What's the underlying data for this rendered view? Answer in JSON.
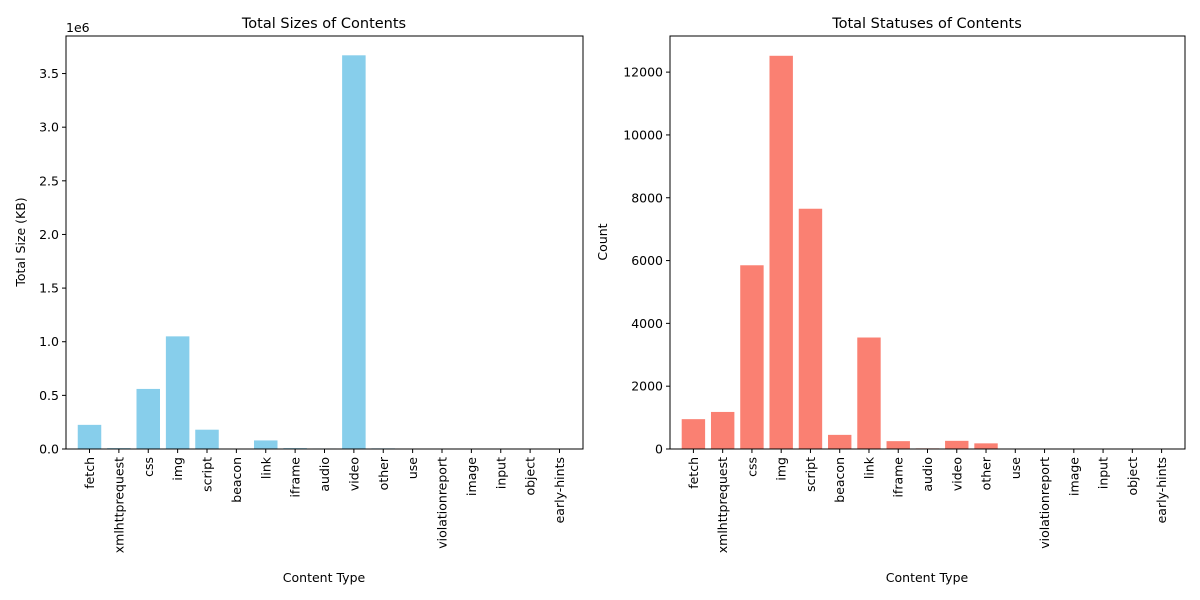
{
  "chart_data": [
    {
      "type": "bar",
      "title": "Total Sizes of Contents",
      "xlabel": "Content Type",
      "ylabel": "Total Size (KB)",
      "offset_label": "1e6",
      "color": "#87CEEB",
      "categories": [
        "fetch",
        "xmlhttprequest",
        "css",
        "img",
        "script",
        "beacon",
        "link",
        "iframe",
        "audio",
        "video",
        "other",
        "use",
        "violationreport",
        "image",
        "input",
        "object",
        "early-hints"
      ],
      "values": [
        225000,
        8000,
        560000,
        1050000,
        180000,
        0,
        80000,
        8000,
        5000,
        3670000,
        6000,
        0,
        0,
        0,
        0,
        0,
        0
      ],
      "ylim": [
        0,
        3850000
      ],
      "yticks": [
        0,
        500000,
        1000000,
        1500000,
        2000000,
        2500000,
        3000000,
        3500000
      ],
      "ytick_labels": [
        "0.0",
        "0.5",
        "1.0",
        "1.5",
        "2.0",
        "2.5",
        "3.0",
        "3.5"
      ],
      "grid": false,
      "legend": "none"
    },
    {
      "type": "bar",
      "title": "Total Statuses of Contents",
      "xlabel": "Content Type",
      "ylabel": "Count",
      "color": "#FA8072",
      "categories": [
        "fetch",
        "xmlhttprequest",
        "css",
        "img",
        "script",
        "beacon",
        "link",
        "iframe",
        "audio",
        "video",
        "other",
        "use",
        "violationreport",
        "image",
        "input",
        "object",
        "early-hints"
      ],
      "values": [
        950,
        1180,
        5850,
        12520,
        7650,
        450,
        3550,
        250,
        20,
        260,
        180,
        10,
        5,
        5,
        5,
        5,
        5
      ],
      "ylim": [
        0,
        13150
      ],
      "yticks": [
        0,
        2000,
        4000,
        6000,
        8000,
        10000,
        12000
      ],
      "ytick_labels": [
        "0",
        "2000",
        "4000",
        "6000",
        "8000",
        "10000",
        "12000"
      ],
      "grid": false,
      "legend": "none"
    }
  ]
}
